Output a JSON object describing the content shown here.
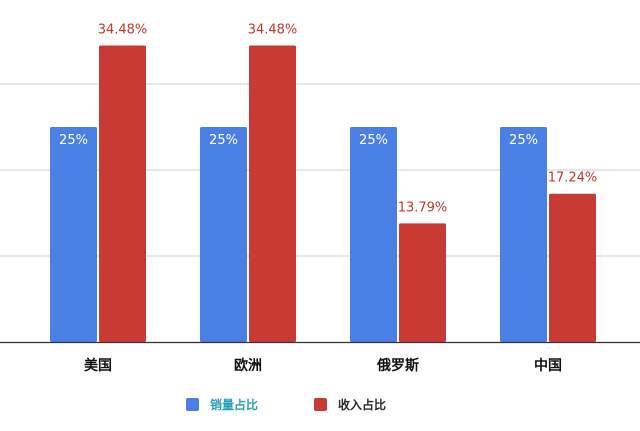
{
  "chart_data": {
    "type": "bar",
    "title": "",
    "xlabel": "",
    "ylabel": "",
    "categories": [
      "美国",
      "欧洲",
      "俄罗斯",
      "中国"
    ],
    "series": [
      {
        "name": "销量占比",
        "values": [
          25,
          25,
          25,
          25
        ],
        "labels": [
          "25%",
          "25%",
          "25%",
          "25%"
        ],
        "color": "#4a7fe6",
        "legend_text_color": "#2aa0b8"
      },
      {
        "name": "收入占比",
        "values": [
          34.48,
          34.48,
          13.79,
          17.24
        ],
        "labels": [
          "34.48%",
          "34.48%",
          "13.79%",
          "17.24%"
        ],
        "color": "#c83b35",
        "legend_text_color": "#2b2b2b"
      }
    ],
    "ylim": [
      0,
      40
    ],
    "grid": true,
    "legend_position": "bottom"
  }
}
